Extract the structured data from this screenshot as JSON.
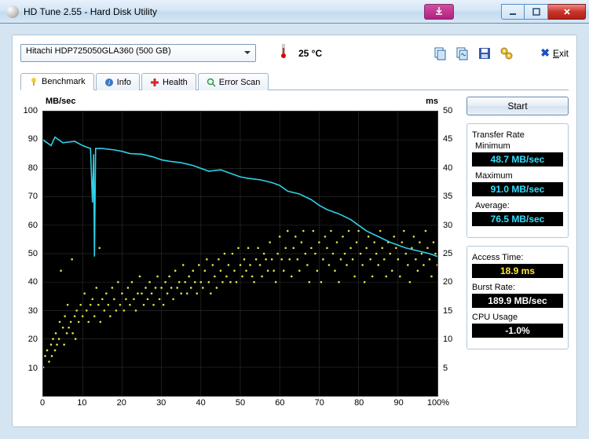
{
  "window": {
    "title": "HD Tune 2.55 - Hard Disk Utility"
  },
  "toolbar": {
    "drive": "Hitachi HDP725050GLA360 (500 GB)",
    "temp_value": "25 °C",
    "exit_label": "Exit"
  },
  "tabs": {
    "benchmark": "Benchmark",
    "info": "Info",
    "health": "Health",
    "errorscan": "Error Scan"
  },
  "start_label": "Start",
  "stats": {
    "transfer_rate_label": "Transfer Rate",
    "min_label": "Minimum",
    "min_value": "48.7 MB/sec",
    "max_label": "Maximum",
    "max_value": "91.0 MB/sec",
    "avg_label": "Average:",
    "avg_value": "76.5 MB/sec",
    "access_label": "Access Time:",
    "access_value": "18.9 ms",
    "burst_label": "Burst Rate:",
    "burst_value": "189.9 MB/sec",
    "cpu_label": "CPU Usage",
    "cpu_value": "-1.0%"
  },
  "chart": {
    "y_left_label": "MB/sec",
    "y_right_label": "ms",
    "y_left": {
      "min": 0,
      "max": 100,
      "step": 10,
      "ticks": [
        10,
        20,
        30,
        40,
        50,
        60,
        70,
        80,
        90,
        100
      ]
    },
    "y_right": {
      "min": 0,
      "max": 50,
      "step": 5,
      "ticks": [
        5,
        10,
        15,
        20,
        25,
        30,
        35,
        40,
        45,
        50
      ]
    },
    "x": {
      "min": 0,
      "max": 100,
      "step": 10,
      "ticks": [
        0,
        10,
        20,
        30,
        40,
        50,
        60,
        70,
        80,
        90,
        "100%"
      ]
    },
    "grid_color": "#2a2a2a",
    "line_color": "#2fd0e8",
    "scatter_color": "#e0e048",
    "bg_color": "#000000",
    "transfer_line": [
      [
        0,
        90
      ],
      [
        2,
        88
      ],
      [
        3,
        91
      ],
      [
        5,
        89
      ],
      [
        8,
        89.5
      ],
      [
        10,
        88
      ],
      [
        12,
        87
      ],
      [
        12.5,
        68
      ],
      [
        12.8,
        85
      ],
      [
        13,
        49
      ],
      [
        13.3,
        87
      ],
      [
        15,
        87
      ],
      [
        18,
        86.5
      ],
      [
        20,
        86
      ],
      [
        22,
        85.2
      ],
      [
        25,
        85
      ],
      [
        28,
        84
      ],
      [
        30,
        83
      ],
      [
        32,
        82.5
      ],
      [
        35,
        82
      ],
      [
        38,
        81
      ],
      [
        40,
        80
      ],
      [
        42,
        79
      ],
      [
        45,
        79.5
      ],
      [
        48,
        78
      ],
      [
        50,
        77
      ],
      [
        52,
        76.5
      ],
      [
        55,
        76
      ],
      [
        58,
        75
      ],
      [
        60,
        74
      ],
      [
        62,
        72
      ],
      [
        65,
        71
      ],
      [
        68,
        69
      ],
      [
        70,
        67
      ],
      [
        72,
        65.5
      ],
      [
        75,
        64
      ],
      [
        78,
        62
      ],
      [
        80,
        60
      ],
      [
        82,
        58
      ],
      [
        85,
        56
      ],
      [
        88,
        54
      ],
      [
        90,
        53
      ],
      [
        92,
        52
      ],
      [
        95,
        51
      ],
      [
        98,
        50
      ],
      [
        100,
        49
      ]
    ],
    "scatter_points": [
      [
        0,
        5
      ],
      [
        0.5,
        7
      ],
      [
        1,
        8
      ],
      [
        1.5,
        6
      ],
      [
        2,
        9
      ],
      [
        2.2,
        7
      ],
      [
        2.5,
        10
      ],
      [
        3,
        8
      ],
      [
        3.2,
        11
      ],
      [
        3.5,
        9
      ],
      [
        4,
        10
      ],
      [
        4.2,
        13
      ],
      [
        4.5,
        22
      ],
      [
        5,
        12
      ],
      [
        5.3,
        9
      ],
      [
        5.5,
        14
      ],
      [
        6,
        11
      ],
      [
        6.2,
        16
      ],
      [
        6.5,
        12
      ],
      [
        7,
        13
      ],
      [
        7.3,
        24
      ],
      [
        7.5,
        11
      ],
      [
        8,
        14
      ],
      [
        8.2,
        10
      ],
      [
        8.5,
        15
      ],
      [
        9,
        13
      ],
      [
        9.5,
        16
      ],
      [
        10,
        14
      ],
      [
        10.5,
        18
      ],
      [
        11,
        15
      ],
      [
        11.5,
        13
      ],
      [
        12,
        16
      ],
      [
        12.5,
        17
      ],
      [
        13,
        14
      ],
      [
        13.5,
        19
      ],
      [
        14,
        16
      ],
      [
        14.3,
        26
      ],
      [
        14.5,
        13
      ],
      [
        15,
        17
      ],
      [
        15.5,
        15
      ],
      [
        16,
        18
      ],
      [
        16.5,
        16
      ],
      [
        17,
        14
      ],
      [
        17.5,
        19
      ],
      [
        18,
        17
      ],
      [
        18.5,
        15
      ],
      [
        19,
        20
      ],
      [
        19.5,
        16
      ],
      [
        20,
        18
      ],
      [
        20.5,
        15
      ],
      [
        21,
        17
      ],
      [
        21.5,
        19
      ],
      [
        22,
        16
      ],
      [
        22.5,
        20
      ],
      [
        23,
        17
      ],
      [
        23.5,
        15
      ],
      [
        24,
        18
      ],
      [
        24.5,
        21
      ],
      [
        25,
        18
      ],
      [
        25.5,
        16
      ],
      [
        26,
        19
      ],
      [
        26.5,
        17
      ],
      [
        27,
        20
      ],
      [
        27.5,
        18
      ],
      [
        28,
        16
      ],
      [
        28.5,
        19
      ],
      [
        29,
        21
      ],
      [
        29.5,
        17
      ],
      [
        30,
        19
      ],
      [
        30.5,
        16
      ],
      [
        31,
        20
      ],
      [
        31.5,
        18
      ],
      [
        32,
        21
      ],
      [
        32.5,
        19
      ],
      [
        33,
        17
      ],
      [
        33.5,
        22
      ],
      [
        34,
        19
      ],
      [
        34.5,
        20
      ],
      [
        35,
        18
      ],
      [
        35.5,
        23
      ],
      [
        36,
        20
      ],
      [
        36.5,
        18
      ],
      [
        37,
        21
      ],
      [
        37.5,
        19
      ],
      [
        38,
        22
      ],
      [
        38.5,
        20
      ],
      [
        39,
        18
      ],
      [
        39.5,
        23
      ],
      [
        40,
        20
      ],
      [
        40.5,
        19
      ],
      [
        41,
        22
      ],
      [
        41.5,
        24
      ],
      [
        42,
        20
      ],
      [
        42.5,
        18
      ],
      [
        43,
        23
      ],
      [
        43.5,
        21
      ],
      [
        44,
        19
      ],
      [
        44.5,
        24
      ],
      [
        45,
        22
      ],
      [
        45.5,
        20
      ],
      [
        46,
        25
      ],
      [
        46.5,
        21
      ],
      [
        47,
        23
      ],
      [
        47.5,
        20
      ],
      [
        48,
        25
      ],
      [
        48.5,
        22
      ],
      [
        49,
        20
      ],
      [
        49.5,
        26
      ],
      [
        50,
        23
      ],
      [
        50.5,
        21
      ],
      [
        51,
        24
      ],
      [
        51.5,
        22
      ],
      [
        52,
        26
      ],
      [
        52.5,
        23
      ],
      [
        53,
        21
      ],
      [
        53.5,
        20
      ],
      [
        54,
        24
      ],
      [
        54.5,
        26
      ],
      [
        55,
        23
      ],
      [
        55.5,
        21
      ],
      [
        56,
        25
      ],
      [
        56.5,
        24
      ],
      [
        57,
        22
      ],
      [
        57.5,
        27
      ],
      [
        58,
        24
      ],
      [
        58.5,
        22
      ],
      [
        59,
        20
      ],
      [
        59.5,
        25
      ],
      [
        60,
        28
      ],
      [
        60.5,
        24
      ],
      [
        61,
        22
      ],
      [
        61.5,
        26
      ],
      [
        62,
        29
      ],
      [
        62.5,
        24
      ],
      [
        63,
        21
      ],
      [
        63.5,
        26
      ],
      [
        64,
        28
      ],
      [
        64.5,
        24
      ],
      [
        65,
        22
      ],
      [
        65.5,
        27
      ],
      [
        66,
        29
      ],
      [
        66.5,
        25
      ],
      [
        67,
        23
      ],
      [
        67.5,
        20
      ],
      [
        68,
        26
      ],
      [
        68.5,
        29
      ],
      [
        69,
        25
      ],
      [
        69.5,
        22
      ],
      [
        70,
        27
      ],
      [
        70.5,
        20
      ],
      [
        71,
        24
      ],
      [
        71.5,
        28
      ],
      [
        72,
        26
      ],
      [
        72.5,
        23
      ],
      [
        73,
        29
      ],
      [
        73.5,
        25
      ],
      [
        74,
        22
      ],
      [
        74.5,
        27
      ],
      [
        75,
        20
      ],
      [
        75.5,
        24
      ],
      [
        76,
        28
      ],
      [
        76.5,
        25
      ],
      [
        77,
        23
      ],
      [
        77.5,
        29
      ],
      [
        78,
        26
      ],
      [
        78.5,
        24
      ],
      [
        79,
        21
      ],
      [
        79.5,
        27
      ],
      [
        80,
        29
      ],
      [
        80.5,
        25
      ],
      [
        81,
        23
      ],
      [
        81.5,
        20
      ],
      [
        82,
        26
      ],
      [
        82.5,
        28
      ],
      [
        83,
        24
      ],
      [
        83.5,
        21
      ],
      [
        84,
        27
      ],
      [
        84.5,
        25
      ],
      [
        85,
        23
      ],
      [
        85.5,
        29
      ],
      [
        86,
        26
      ],
      [
        86.5,
        24
      ],
      [
        87,
        21
      ],
      [
        87.5,
        27
      ],
      [
        88,
        25
      ],
      [
        88.5,
        22
      ],
      [
        89,
        28
      ],
      [
        89.5,
        26
      ],
      [
        90,
        24
      ],
      [
        90.5,
        21
      ],
      [
        91,
        27
      ],
      [
        91.5,
        29
      ],
      [
        92,
        25
      ],
      [
        92.5,
        23
      ],
      [
        93,
        20
      ],
      [
        93.5,
        26
      ],
      [
        94,
        28
      ],
      [
        94.5,
        24
      ],
      [
        95,
        22
      ],
      [
        95.5,
        27
      ],
      [
        96,
        25
      ],
      [
        96.5,
        23
      ],
      [
        97,
        29
      ],
      [
        97.5,
        26
      ],
      [
        98,
        24
      ],
      [
        98.5,
        21
      ],
      [
        99,
        27
      ],
      [
        99.5,
        25
      ],
      [
        100,
        23
      ]
    ]
  }
}
